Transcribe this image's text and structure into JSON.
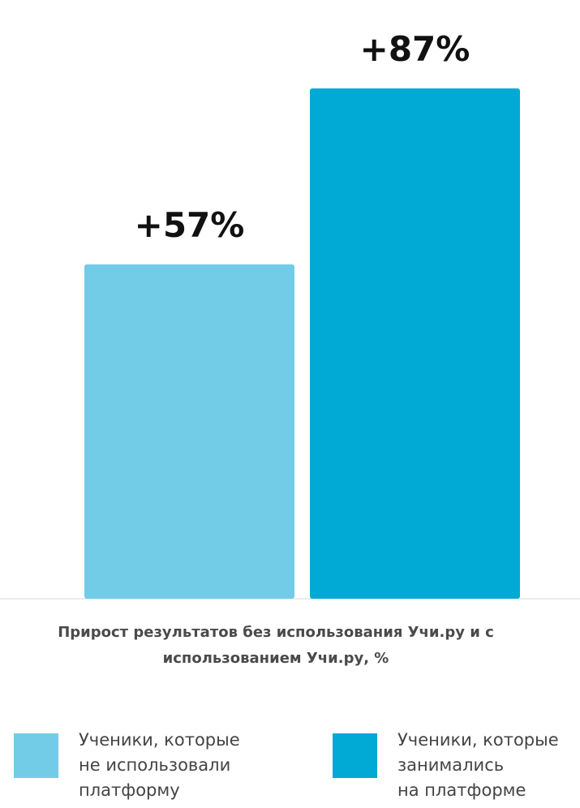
{
  "colors": {
    "series_light": "#72CCE7",
    "series_dark": "#00AAD4",
    "baseline": "#d9d9d9",
    "label_text": "#111111"
  },
  "chart_data": {
    "type": "bar",
    "categories": [
      "Ученики, которые не использовали платформу",
      "Ученики, которые занимались на платформе"
    ],
    "values": [
      57,
      87
    ],
    "value_labels": [
      "+57%",
      "+87%"
    ],
    "bar_colors": [
      "#72CCE7",
      "#00AAD4"
    ],
    "ylim": [
      0,
      100
    ],
    "title_lines": [
      "Прирост результатов без использования Учи.ру  и с",
      "использованием Учи.ру, %"
    ],
    "legend": {
      "placement": "bottom",
      "items": [
        {
          "lines": [
            "Ученики, которые",
            "не использовали",
            "платформу"
          ],
          "color": "#72CCE7"
        },
        {
          "lines": [
            "Ученики, которые",
            "занимались",
            "на платформе"
          ],
          "color": "#00AAD4"
        }
      ]
    },
    "grid": false,
    "axes_visible": false
  }
}
